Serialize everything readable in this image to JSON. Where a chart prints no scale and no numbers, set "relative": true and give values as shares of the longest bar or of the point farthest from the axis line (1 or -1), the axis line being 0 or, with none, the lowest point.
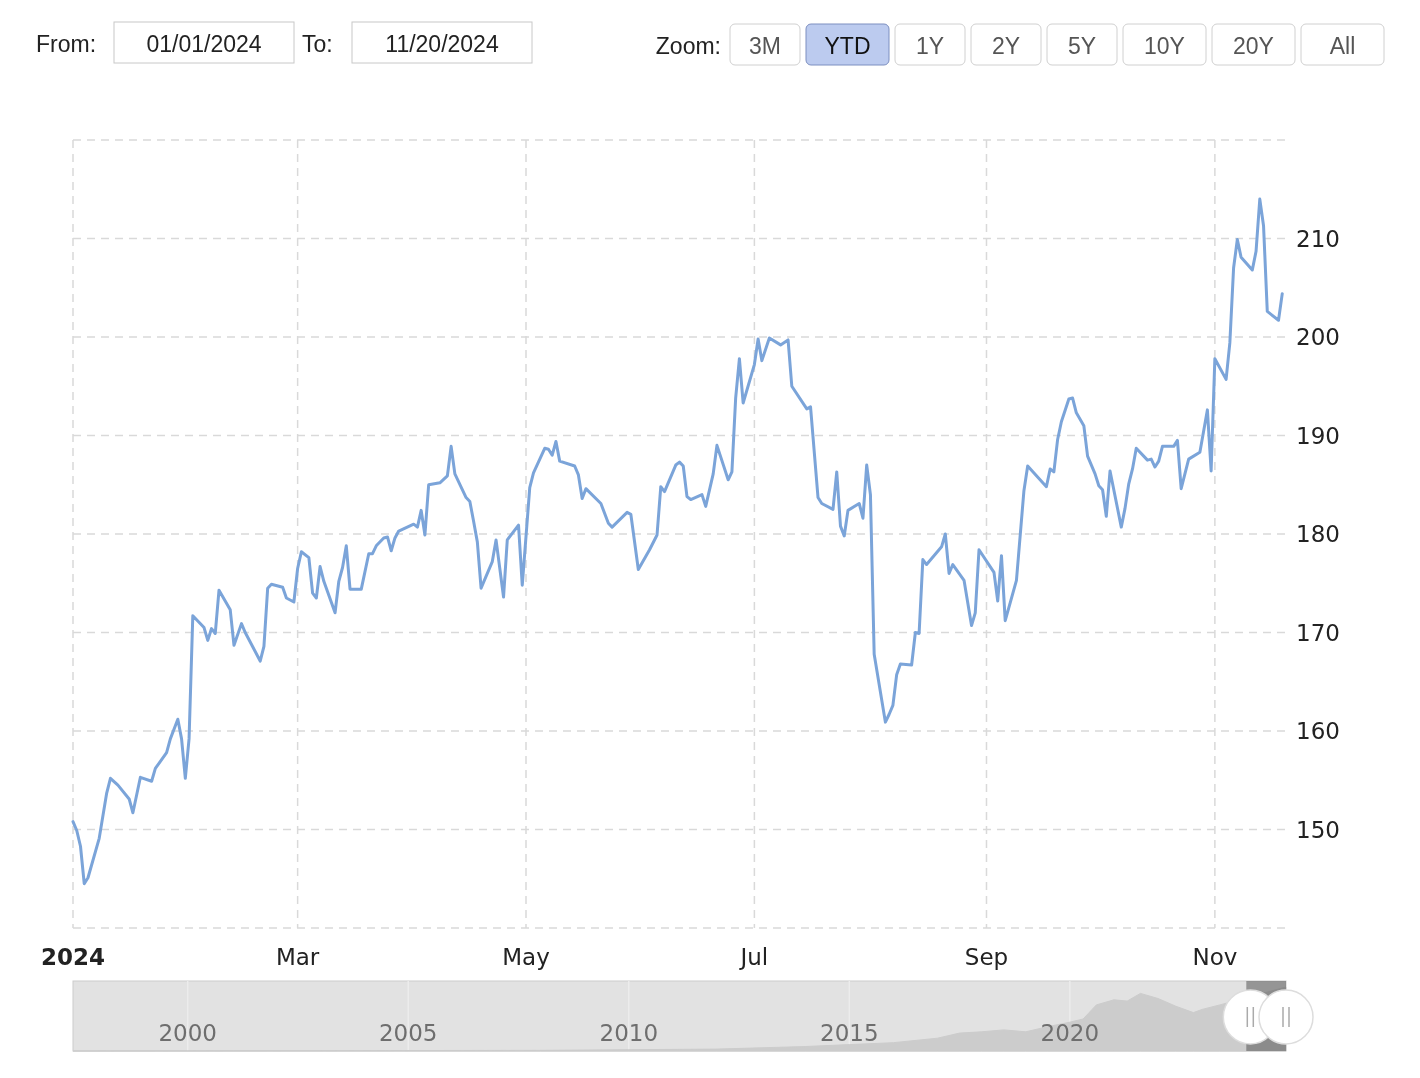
{
  "chart_data": [
    {
      "type": "other",
      "annotations": [
        "From:",
        "01/01/2024",
        "To:",
        "11/20/2024",
        "Zoom:",
        "3M",
        "YTD",
        "1Y",
        "2Y",
        "5Y",
        "10Y",
        "20Y",
        "All"
      ]
    },
    {
      "type": "line",
      "color": "#7ba4d9",
      "xlim": [
        "2024-01-01",
        "2024-11-20"
      ],
      "ylim": [
        140,
        220
      ],
      "grid": true,
      "xticks": [
        {
          "value": "2024-01-01",
          "label": "2024"
        },
        {
          "value": "2024-03-01",
          "label": "Mar"
        },
        {
          "value": "2024-05-01",
          "label": "May"
        },
        {
          "value": "2024-07-01",
          "label": "Jul"
        },
        {
          "value": "2024-09-01",
          "label": "Sep"
        },
        {
          "value": "2024-11-01",
          "label": "Nov"
        }
      ],
      "yticks": [
        {
          "value": 140,
          "label": null
        },
        150,
        160,
        170,
        180,
        190,
        200,
        210,
        {
          "value": 220,
          "label": null
        }
      ],
      "x": [
        "2024-01-01",
        "2024-01-02",
        "2024-01-03",
        "2024-01-04",
        "2024-01-05",
        "2024-01-08",
        "2024-01-10",
        "2024-01-11",
        "2024-01-13",
        "2024-01-16",
        "2024-01-17",
        "2024-01-19",
        "2024-01-22",
        "2024-01-23",
        "2024-01-26",
        "2024-01-27",
        "2024-01-29",
        "2024-01-30",
        "2024-01-31",
        "2024-02-01",
        "2024-02-02",
        "2024-02-05",
        "2024-02-06",
        "2024-02-07",
        "2024-02-08",
        "2024-02-09",
        "2024-02-12",
        "2024-02-13",
        "2024-02-15",
        "2024-02-16",
        "2024-02-20",
        "2024-02-21",
        "2024-02-22",
        "2024-02-23",
        "2024-02-26",
        "2024-02-27",
        "2024-02-29",
        "2024-03-01",
        "2024-03-02",
        "2024-03-04",
        "2024-03-05",
        "2024-03-06",
        "2024-03-07",
        "2024-03-08",
        "2024-03-11",
        "2024-03-12",
        "2024-03-13",
        "2024-03-14",
        "2024-03-15",
        "2024-03-18",
        "2024-03-20",
        "2024-03-21",
        "2024-03-22",
        "2024-03-24",
        "2024-03-25",
        "2024-03-26",
        "2024-03-27",
        "2024-03-28",
        "2024-04-01",
        "2024-04-02",
        "2024-04-03",
        "2024-04-04",
        "2024-04-05",
        "2024-04-08",
        "2024-04-10",
        "2024-04-11",
        "2024-04-12",
        "2024-04-15",
        "2024-04-16",
        "2024-04-17",
        "2024-04-18",
        "2024-04-19",
        "2024-04-22",
        "2024-04-23",
        "2024-04-25",
        "2024-04-26",
        "2024-04-29",
        "2024-04-30",
        "2024-05-02",
        "2024-05-03",
        "2024-05-06",
        "2024-05-07",
        "2024-05-08",
        "2024-05-09",
        "2024-05-10",
        "2024-05-14",
        "2024-05-15",
        "2024-05-16",
        "2024-05-17",
        "2024-05-21",
        "2024-05-23",
        "2024-05-24",
        "2024-05-28",
        "2024-05-29",
        "2024-05-31",
        "2024-06-03",
        "2024-06-05",
        "2024-06-06",
        "2024-06-07",
        "2024-06-10",
        "2024-06-11",
        "2024-06-12",
        "2024-06-13",
        "2024-06-14",
        "2024-06-17",
        "2024-06-18",
        "2024-06-20",
        "2024-06-21",
        "2024-06-24",
        "2024-06-25",
        "2024-06-26",
        "2024-06-27",
        "2024-06-28",
        "2024-07-01",
        "2024-07-02",
        "2024-07-03",
        "2024-07-05",
        "2024-07-08",
        "2024-07-10",
        "2024-07-11",
        "2024-07-15",
        "2024-07-16",
        "2024-07-18",
        "2024-07-19",
        "2024-07-22",
        "2024-07-23",
        "2024-07-24",
        "2024-07-25",
        "2024-07-26",
        "2024-07-29",
        "2024-07-30",
        "2024-07-31",
        "2024-08-01",
        "2024-08-02",
        "2024-08-05",
        "2024-08-06",
        "2024-08-07",
        "2024-08-08",
        "2024-08-09",
        "2024-08-12",
        "2024-08-13",
        "2024-08-14",
        "2024-08-15",
        "2024-08-16",
        "2024-08-20",
        "2024-08-21",
        "2024-08-22",
        "2024-08-23",
        "2024-08-26",
        "2024-08-28",
        "2024-08-29",
        "2024-08-30",
        "2024-09-03",
        "2024-09-04",
        "2024-09-05",
        "2024-09-06",
        "2024-09-09",
        "2024-09-11",
        "2024-09-12",
        "2024-09-17",
        "2024-09-18",
        "2024-09-19",
        "2024-09-20",
        "2024-09-21",
        "2024-09-23",
        "2024-09-24",
        "2024-09-25",
        "2024-09-27",
        "2024-09-28",
        "2024-09-30",
        "2024-10-01",
        "2024-10-02",
        "2024-10-03",
        "2024-10-04",
        "2024-10-07",
        "2024-10-08",
        "2024-10-09",
        "2024-10-10",
        "2024-10-11",
        "2024-10-14",
        "2024-10-15",
        "2024-10-16",
        "2024-10-17",
        "2024-10-18",
        "2024-10-21",
        "2024-10-22",
        "2024-10-23",
        "2024-10-25",
        "2024-10-28",
        "2024-10-30",
        "2024-10-31",
        "2024-11-01",
        "2024-11-04",
        "2024-11-05",
        "2024-11-06",
        "2024-11-07",
        "2024-11-08",
        "2024-11-11",
        "2024-11-12",
        "2024-11-13",
        "2024-11-14",
        "2024-11-15",
        "2024-11-18",
        "2024-11-19"
      ],
      "values": [
        150.8,
        149.9,
        148.3,
        144.5,
        145.1,
        149.1,
        153.7,
        155.2,
        154.5,
        153.1,
        151.7,
        155.3,
        154.9,
        156.2,
        157.8,
        159.2,
        161.2,
        159.2,
        155.2,
        159.2,
        171.7,
        170.5,
        169.2,
        170.4,
        169.9,
        174.3,
        172.3,
        168.7,
        170.9,
        170.0,
        167.1,
        168.6,
        174.5,
        174.9,
        174.6,
        173.5,
        173.1,
        176.5,
        178.2,
        177.6,
        174.0,
        173.5,
        176.7,
        175.2,
        172.0,
        175.2,
        176.6,
        178.8,
        174.4,
        174.4,
        178.0,
        178.0,
        178.8,
        179.6,
        179.7,
        178.3,
        179.6,
        180.3,
        181.0,
        180.7,
        182.4,
        179.9,
        185.0,
        185.2,
        185.9,
        188.9,
        186.1,
        183.7,
        183.3,
        181.3,
        179.2,
        174.5,
        177.2,
        179.4,
        173.6,
        179.4,
        180.9,
        174.8,
        184.7,
        186.2,
        188.7,
        188.6,
        188.0,
        189.4,
        187.4,
        186.9,
        186.0,
        183.6,
        184.6,
        183.1,
        181.1,
        180.7,
        182.2,
        182.0,
        176.4,
        178.4,
        179.9,
        184.8,
        184.3,
        187.0,
        187.3,
        186.9,
        183.8,
        183.5,
        184.0,
        182.8,
        186.1,
        189.0,
        185.5,
        186.3,
        193.8,
        197.8,
        193.3,
        197.2,
        199.8,
        197.6,
        199.9,
        199.2,
        199.7,
        195.0,
        192.7,
        192.9,
        183.7,
        183.1,
        182.5,
        186.3,
        180.8,
        179.8,
        182.4,
        183.1,
        181.6,
        187.0,
        184.0,
        167.8,
        160.9,
        161.7,
        162.6,
        165.7,
        166.8,
        166.7,
        170.0,
        169.9,
        177.4,
        176.9,
        178.7,
        180.0,
        176.0,
        176.9,
        175.3,
        170.7,
        172.0,
        178.4,
        176.1,
        173.2,
        177.8,
        171.2,
        175.3,
        184.4,
        186.9,
        184.8,
        186.6,
        186.3,
        189.6,
        191.4,
        193.7,
        193.8,
        192.3,
        191.0,
        187.9,
        186.1,
        184.9,
        184.5,
        181.8,
        186.4,
        180.7,
        182.6,
        185.1,
        186.6,
        188.7,
        187.5,
        187.6,
        186.8,
        187.4,
        188.9,
        188.9,
        189.5,
        184.6,
        187.6,
        188.3,
        192.6,
        186.4,
        197.8,
        195.7,
        199.4,
        207.0,
        209.9,
        208.1,
        206.8,
        208.7,
        214.0,
        211.3,
        202.6,
        201.7,
        204.4
      ]
    },
    {
      "type": "area",
      "relative": true,
      "color": "#cccccc",
      "xlim": [
        1997.4,
        2024.9
      ],
      "xticks": [
        2000,
        2005,
        2010,
        2015,
        2020
      ],
      "tick_labels": "x",
      "grid": "x",
      "bands": [
        {
          "axis": "x",
          "from": 2024,
          "to": 2024.9,
          "color": "#555555"
        }
      ],
      "x": [
        1997.4,
        2008,
        2010,
        2012,
        2013,
        2014,
        2015,
        2016,
        2017,
        2017.5,
        2018,
        2018.5,
        2019,
        2019.5,
        2020,
        2020.3,
        2020.6,
        2021,
        2021.3,
        2021.6,
        2022,
        2022.4,
        2022.8,
        2023,
        2023.4,
        2024.9
      ],
      "values": [
        0,
        0.01,
        0.02,
        0.03,
        0.05,
        0.07,
        0.1,
        0.13,
        0.2,
        0.28,
        0.3,
        0.33,
        0.3,
        0.38,
        0.45,
        0.5,
        0.72,
        0.8,
        0.78,
        0.9,
        0.82,
        0.7,
        0.6,
        0.65,
        0.72,
        1
      ]
    }
  ]
}
